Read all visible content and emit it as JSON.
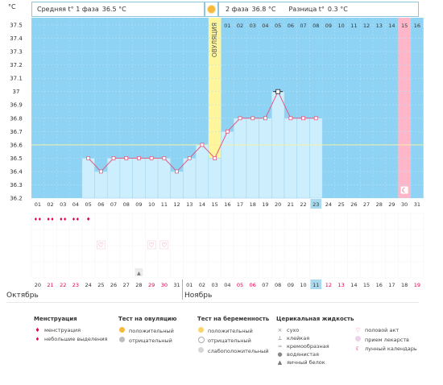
{
  "header": {
    "unit": "°C",
    "phase1_label": "Средняя t° 1 фаза",
    "phase1_value": "36.5 °C",
    "phase2_label": "2 фаза",
    "phase2_value": "36.8 °C",
    "diff_label": "Разница t°",
    "diff_value": "0.3 °C"
  },
  "ovulation_label": "ОВУЛЯЦИЯ",
  "chart_data": {
    "type": "line",
    "ylim": [
      36.2,
      37.5
    ],
    "y_ticks": [
      "37.5",
      "37.4",
      "37.3",
      "37.2",
      "37.1",
      "37",
      "36.9",
      "36.8",
      "36.7",
      "36.6",
      "36.5",
      "36.4",
      "36.3",
      "36.2"
    ],
    "top_day_labels": [
      "",
      "",
      "",
      "",
      "",
      "",
      "",
      "",
      "",
      "",
      "",
      "",
      "",
      "",
      "",
      "01",
      "02",
      "03",
      "04",
      "05",
      "06",
      "07",
      "08",
      "09",
      "10",
      "11",
      "12",
      "13",
      "14",
      "15",
      "16"
    ],
    "cycle_days": [
      "01",
      "02",
      "03",
      "04",
      "05",
      "06",
      "07",
      "08",
      "09",
      "10",
      "11",
      "12",
      "13",
      "14",
      "15",
      "16",
      "17",
      "18",
      "19",
      "20",
      "21",
      "22",
      "23",
      "24",
      "25",
      "26",
      "27",
      "28",
      "29",
      "30",
      "31"
    ],
    "dates": [
      "20",
      "21",
      "22",
      "23",
      "24",
      "25",
      "26",
      "27",
      "28",
      "29",
      "30",
      "31",
      "01",
      "02",
      "03",
      "04",
      "05",
      "06",
      "07",
      "08",
      "09",
      "10",
      "11",
      "12",
      "13",
      "14",
      "15",
      "16",
      "17",
      "18",
      "19"
    ],
    "date_colors": [
      "#333",
      "#e0004a",
      "#e0004a",
      "#e0004a",
      "#333",
      "#333",
      "#333",
      "#333",
      "#333",
      "#e0004a",
      "#e0004a",
      "#333",
      "#333",
      "#333",
      "#333",
      "#333",
      "#e0004a",
      "#e0004a",
      "#333",
      "#333",
      "#333",
      "#333",
      "#333",
      "#e0004a",
      "#e0004a",
      "#333",
      "#333",
      "#333",
      "#333",
      "#333",
      "#e0004a"
    ],
    "temps": [
      null,
      null,
      null,
      null,
      36.5,
      36.4,
      36.5,
      36.5,
      36.5,
      36.5,
      36.5,
      36.4,
      36.5,
      36.6,
      36.5,
      36.7,
      36.8,
      36.8,
      36.8,
      37.0,
      36.8,
      36.8,
      36.8,
      null,
      null,
      null,
      null,
      null,
      null,
      null,
      null
    ],
    "coverline": 36.6,
    "ovulation_day": 15,
    "today_day": 23,
    "pink_day": 30,
    "menstruation_days": [
      1,
      2,
      3,
      4,
      5
    ],
    "intercourse_days": [
      6,
      10,
      11
    ],
    "drop_days": [
      9
    ]
  },
  "months": {
    "left": "Октябрь",
    "right": "Ноябрь"
  },
  "legend": {
    "menstruation": {
      "title": "Менструация",
      "items": [
        "менструация",
        "небольшие выделения"
      ]
    },
    "ovulation_test": {
      "title": "Тест на овуляцию",
      "items": [
        "положительный",
        "отрицательный"
      ]
    },
    "pregnancy_test": {
      "title": "Тест на беременность",
      "items": [
        "положительный",
        "отрицательный",
        "слабоположительный"
      ]
    },
    "cervical": {
      "title": "Церикальная жидкость",
      "items": [
        "сухо",
        "клейкая",
        "кремообразная",
        "водянистая",
        "яичный белок"
      ]
    },
    "other": {
      "items": [
        "половой акт",
        "прием лекарств",
        "лунный календарь"
      ]
    }
  },
  "colors": {
    "chart_bg": "#8fd3f4",
    "bar_fill": "#cdeefd",
    "line": "#e05a80",
    "ovulation": "#fff59d",
    "pink": "#ffb6c8",
    "today": "#a9daf0"
  }
}
